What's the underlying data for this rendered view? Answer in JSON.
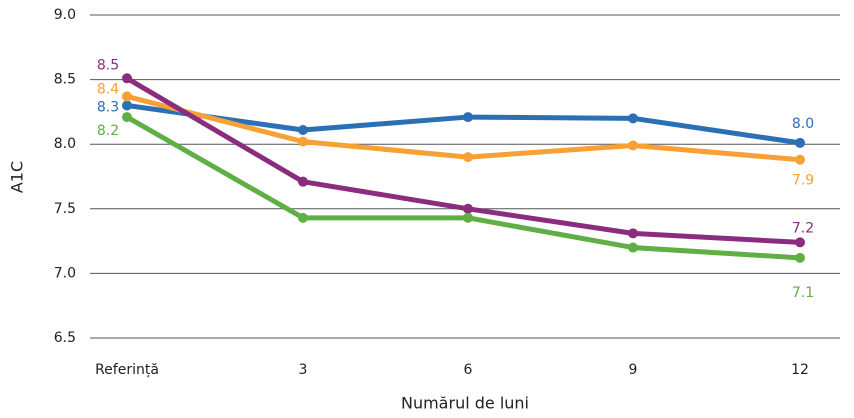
{
  "chart_data": {
    "type": "line",
    "y_label": "A1C",
    "x_label": "Numărul de luni",
    "categories": [
      "Referință",
      "3",
      "6",
      "9",
      "12"
    ],
    "ylim": [
      6.5,
      9.0
    ],
    "yticks": [
      6.5,
      {
        "value": 7,
        "label": "7.0"
      },
      7.5,
      {
        "value": 8,
        "label": "8.0"
      },
      8.5,
      {
        "value": 9,
        "label": "9.0"
      }
    ],
    "grid": true,
    "series": [
      {
        "color": "#2b6fb4",
        "values": [
          8.3,
          8.11,
          8.21,
          8.2,
          8.01
        ],
        "value_labels": [
          "8.3",
          null,
          null,
          null,
          "8.0"
        ]
      },
      {
        "color": "#f7a035",
        "values": [
          8.37,
          8.02,
          7.9,
          7.99,
          7.88
        ],
        "value_labels": [
          "8.4",
          null,
          null,
          null,
          "7.9"
        ]
      },
      {
        "color": "#8a2d7e",
        "values": [
          8.51,
          7.71,
          7.5,
          7.31,
          7.24
        ],
        "value_labels": [
          "8.5",
          null,
          null,
          null,
          "7.2"
        ]
      },
      {
        "color": "#5fae46",
        "values": [
          8.21,
          7.43,
          7.43,
          7.2,
          7.12
        ],
        "value_labels": [
          "8.2",
          null,
          null,
          null,
          "7.1"
        ]
      }
    ]
  }
}
